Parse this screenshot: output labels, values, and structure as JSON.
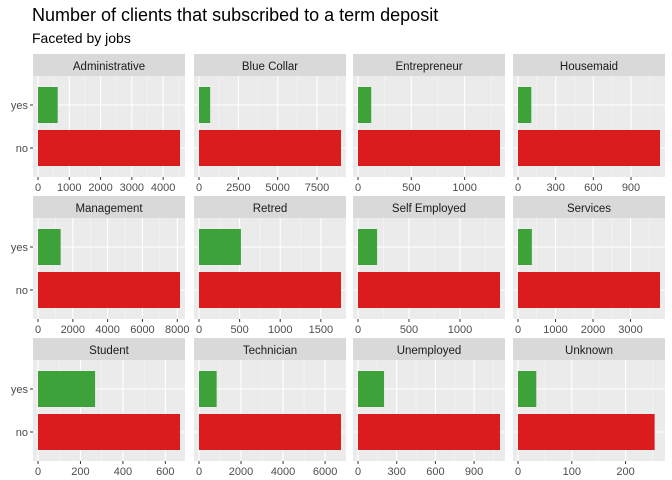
{
  "title": "Number of clients that subscribed to a term deposit",
  "subtitle": "Faceted by jobs",
  "colors": {
    "yes": "#3ea23a",
    "no": "#db1c1c",
    "panel": "#ebebeb",
    "strip": "#d9d9d9",
    "grid": "#ffffff"
  },
  "chart_data": {
    "type": "bar",
    "orientation": "horizontal",
    "categories": [
      "yes",
      "no"
    ],
    "grid": true,
    "facets": [
      {
        "name": "Administrative",
        "values": {
          "yes": 630,
          "no": 4540
        },
        "xlim": [
          0,
          4540
        ],
        "ticks": [
          0,
          1000,
          2000,
          3000,
          4000
        ],
        "tick_labels": [
          "0",
          "1000",
          "2000",
          "3000",
          "4000"
        ]
      },
      {
        "name": "Blue Collar",
        "values": {
          "yes": 710,
          "no": 9024
        },
        "xlim": [
          0,
          9024
        ],
        "ticks": [
          0,
          2500,
          5000,
          7500
        ],
        "tick_labels": [
          "0",
          "2500",
          "5000",
          "7500"
        ]
      },
      {
        "name": "Entrepreneur",
        "values": {
          "yes": 124,
          "no": 1332
        },
        "xlim": [
          0,
          1332
        ],
        "ticks": [
          0,
          500,
          1000
        ],
        "tick_labels": [
          "0",
          "500",
          "1000"
        ]
      },
      {
        "name": "Housemaid",
        "values": {
          "yes": 106,
          "no": 1131
        },
        "xlim": [
          0,
          1131
        ],
        "ticks": [
          0,
          300,
          600,
          900
        ],
        "tick_labels": [
          "0",
          "300",
          "600",
          "900"
        ]
      },
      {
        "name": "Management",
        "values": {
          "yes": 1301,
          "no": 8157
        },
        "xlim": [
          0,
          8157
        ],
        "ticks": [
          0,
          2000,
          4000,
          6000,
          8000
        ],
        "tick_labels": [
          "0",
          "2000",
          "4000",
          "6000",
          "8000"
        ]
      },
      {
        "name": "Retred",
        "values": {
          "yes": 516,
          "no": 1748
        },
        "xlim": [
          0,
          1748
        ],
        "ticks": [
          0,
          500,
          1000,
          1500
        ],
        "tick_labels": [
          "0",
          "500",
          "1000",
          "1500"
        ]
      },
      {
        "name": "Self Employed",
        "values": {
          "yes": 187,
          "no": 1392
        },
        "xlim": [
          0,
          1392
        ],
        "ticks": [
          0,
          500,
          1000
        ],
        "tick_labels": [
          "0",
          "500",
          "1000"
        ]
      },
      {
        "name": "Services",
        "values": {
          "yes": 369,
          "no": 3785
        },
        "xlim": [
          0,
          3785
        ],
        "ticks": [
          0,
          1000,
          2000,
          3000
        ],
        "tick_labels": [
          "0",
          "1000",
          "2000",
          "3000"
        ]
      },
      {
        "name": "Student",
        "values": {
          "yes": 269,
          "no": 669
        },
        "xlim": [
          0,
          669
        ],
        "ticks": [
          0,
          200,
          400,
          600
        ],
        "tick_labels": [
          "0",
          "200",
          "400",
          "600"
        ]
      },
      {
        "name": "Technician",
        "values": {
          "yes": 840,
          "no": 6757
        },
        "xlim": [
          0,
          6757
        ],
        "ticks": [
          0,
          2000,
          4000,
          6000
        ],
        "tick_labels": [
          "0",
          "2000",
          "4000",
          "6000"
        ]
      },
      {
        "name": "Unemployed",
        "values": {
          "yes": 202,
          "no": 1101
        },
        "xlim": [
          0,
          1101
        ],
        "ticks": [
          0,
          300,
          600,
          900
        ],
        "tick_labels": [
          "0",
          "300",
          "600",
          "900"
        ]
      },
      {
        "name": "Unknown",
        "values": {
          "yes": 34,
          "no": 254
        },
        "xlim": [
          0,
          264
        ],
        "ticks": [
          0,
          100,
          200
        ],
        "tick_labels": [
          "0",
          "100",
          "200"
        ]
      }
    ]
  }
}
